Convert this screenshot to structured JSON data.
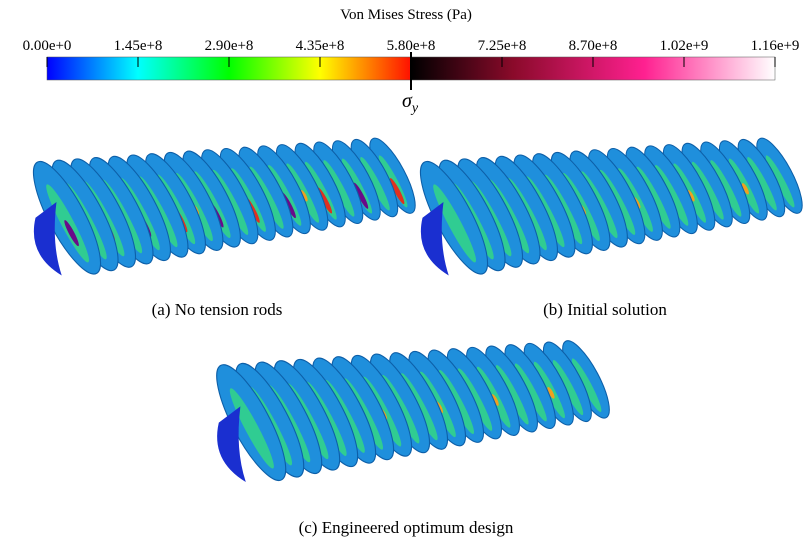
{
  "colorbar": {
    "title": "Von Mises Stress (Pa)",
    "ticks": [
      "0.00e+0",
      "1.45e+8",
      "2.90e+8",
      "4.35e+8",
      "5.80e+8",
      "7.25e+8",
      "8.70e+8",
      "1.02e+9",
      "1.16e+9"
    ],
    "marker": {
      "symbol": "σ",
      "subscript": "y"
    }
  },
  "panels": [
    {
      "caption": "(a) No tension rods"
    },
    {
      "caption": "(b) Initial solution"
    },
    {
      "caption": "(c) Engineered optimum design"
    }
  ]
}
